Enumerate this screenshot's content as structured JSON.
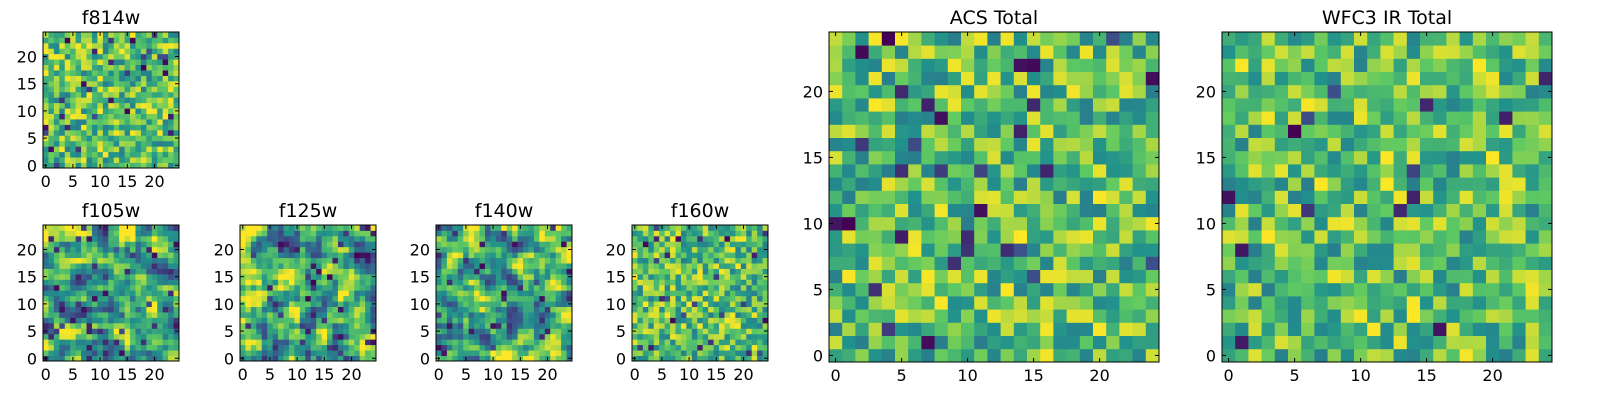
{
  "figure": {
    "panels": [
      {
        "id": "f814w",
        "title": "f814w",
        "pattern": "fine",
        "seed": 11
      },
      {
        "id": "f105w",
        "title": "f105w",
        "pattern": "smooth",
        "seed": 23
      },
      {
        "id": "f125w",
        "title": "f125w",
        "pattern": "smooth",
        "seed": 37
      },
      {
        "id": "f140w",
        "title": "f140w",
        "pattern": "smooth",
        "seed": 41
      },
      {
        "id": "f160w",
        "title": "f160w",
        "pattern": "fine",
        "seed": 53
      },
      {
        "id": "acs-total",
        "title": "ACS Total",
        "pattern": "blocky",
        "seed": 67
      },
      {
        "id": "wfc3-total",
        "title": "WFC3 IR Total",
        "pattern": "blocky",
        "seed": 79
      }
    ]
  },
  "chart_data": {
    "type": "heatmap",
    "colormap": "viridis",
    "colormap_stops": [
      "#440154",
      "#3b528b",
      "#21918c",
      "#5ec962",
      "#fde725"
    ],
    "grid_size": 25,
    "xlim": [
      -0.5,
      24.5
    ],
    "ylim": [
      -0.5,
      24.5
    ],
    "small_panel_ticks": [
      0,
      5,
      10,
      15,
      20
    ],
    "large_panel_ticks": [
      0,
      5,
      10,
      15,
      20
    ],
    "panels": [
      "f814w",
      "f105w",
      "f125w",
      "f140w",
      "f160w",
      "ACS Total",
      "WFC3 IR Total"
    ],
    "values_note": "pseudo-random pixel intensities, mostly mid-to-high (green/yellow) with sparse dark outliers"
  }
}
